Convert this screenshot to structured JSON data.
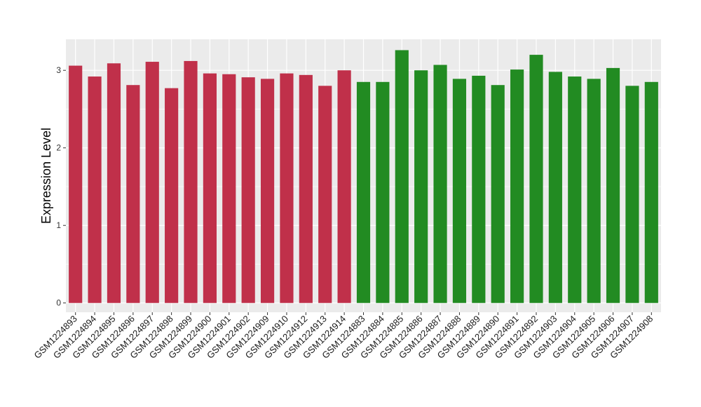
{
  "chart_data": {
    "type": "bar",
    "ylabel": "Expression Level",
    "xlabel": "",
    "ylim": [
      -0.12,
      3.4
    ],
    "yticks": [
      0,
      1,
      2,
      3
    ],
    "grid": true,
    "colors": {
      "group_a": "#c0304a",
      "group_b": "#228b22",
      "panel": "#ebebeb",
      "grid": "#ffffff"
    },
    "categories": [
      "GSM1224893",
      "GSM1224894",
      "GSM1224895",
      "GSM1224896",
      "GSM1224897",
      "GSM1224898",
      "GSM1224899",
      "GSM1224900",
      "GSM1224901",
      "GSM1224902",
      "GSM1224909",
      "GSM1224910",
      "GSM1224912",
      "GSM1224913",
      "GSM1224914",
      "GSM1224883",
      "GSM1224884",
      "GSM1224885",
      "GSM1224886",
      "GSM1224887",
      "GSM1224888",
      "GSM1224889",
      "GSM1224890",
      "GSM1224891",
      "GSM1224892",
      "GSM1224903",
      "GSM1224904",
      "GSM1224905",
      "GSM1224906",
      "GSM1224907",
      "GSM1224908"
    ],
    "values": [
      3.06,
      2.92,
      3.09,
      2.81,
      3.11,
      2.77,
      3.12,
      2.96,
      2.95,
      2.91,
      2.89,
      2.96,
      2.94,
      2.8,
      3.0,
      2.85,
      2.85,
      3.26,
      3.0,
      3.07,
      2.89,
      2.93,
      2.81,
      3.01,
      3.2,
      2.98,
      2.92,
      2.89,
      3.03,
      2.8,
      2.85
    ],
    "groups": [
      "a",
      "a",
      "a",
      "a",
      "a",
      "a",
      "a",
      "a",
      "a",
      "a",
      "a",
      "a",
      "a",
      "a",
      "a",
      "b",
      "b",
      "b",
      "b",
      "b",
      "b",
      "b",
      "b",
      "b",
      "b",
      "b",
      "b",
      "b",
      "b",
      "b",
      "b"
    ]
  }
}
